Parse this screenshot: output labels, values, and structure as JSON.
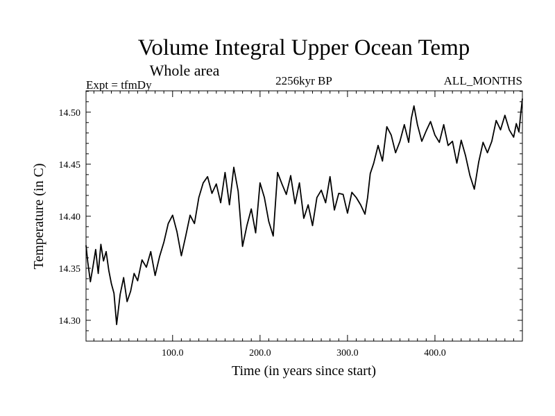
{
  "chart_data": {
    "type": "line",
    "title": "Volume Integral Upper Ocean Temp",
    "subtitle": "Whole area",
    "left_label": "Expt = tfmDy",
    "center_label": "2256kyr BP",
    "right_label": "ALL_MONTHS",
    "xlabel": "Time (in years since start)",
    "ylabel": "Temperature (in C)",
    "xlim": [
      1,
      500
    ],
    "ylim": [
      14.28,
      14.5205
    ],
    "x_ticks": [
      100,
      200,
      300,
      400
    ],
    "x_tick_labels": [
      "100.0",
      "200.0",
      "300.0",
      "400.0"
    ],
    "y_ticks": [
      14.3,
      14.35,
      14.4,
      14.45,
      14.5
    ],
    "y_tick_labels": [
      "14.30",
      "14.35",
      "14.40",
      "14.45",
      "14.50"
    ],
    "series": [
      {
        "name": "Volume integral upper ocean temperature",
        "x": [
          1,
          3,
          6,
          9,
          12,
          15,
          18,
          21,
          24,
          27,
          30,
          33,
          36,
          40,
          44,
          48,
          52,
          56,
          60,
          65,
          70,
          75,
          80,
          85,
          90,
          95,
          100,
          105,
          110,
          115,
          120,
          125,
          130,
          135,
          140,
          145,
          150,
          155,
          160,
          165,
          170,
          175,
          180,
          185,
          190,
          195,
          200,
          205,
          210,
          215,
          220,
          225,
          230,
          235,
          240,
          245,
          250,
          255,
          260,
          265,
          270,
          275,
          280,
          285,
          290,
          295,
          300,
          305,
          310,
          315,
          320,
          323,
          326,
          330,
          335,
          340,
          345,
          350,
          355,
          360,
          365,
          370,
          373,
          376,
          380,
          385,
          390,
          395,
          400,
          405,
          410,
          415,
          420,
          425,
          430,
          435,
          440,
          445,
          450,
          455,
          460,
          465,
          470,
          475,
          480,
          485,
          490,
          493,
          496,
          498,
          500
        ],
        "y": [
          14.372,
          14.356,
          14.337,
          14.352,
          14.368,
          14.345,
          14.373,
          14.357,
          14.366,
          14.348,
          14.335,
          14.326,
          14.296,
          14.325,
          14.341,
          14.318,
          14.328,
          14.345,
          14.338,
          14.358,
          14.351,
          14.366,
          14.343,
          14.361,
          14.375,
          14.393,
          14.401,
          14.385,
          14.362,
          14.381,
          14.401,
          14.393,
          14.418,
          14.432,
          14.438,
          14.422,
          14.431,
          14.413,
          14.442,
          14.411,
          14.447,
          14.424,
          14.371,
          14.391,
          14.407,
          14.384,
          14.432,
          14.418,
          14.395,
          14.381,
          14.442,
          14.431,
          14.421,
          14.439,
          14.412,
          14.432,
          14.398,
          14.411,
          14.391,
          14.418,
          14.425,
          14.413,
          14.438,
          14.406,
          14.422,
          14.421,
          14.403,
          14.423,
          14.418,
          14.411,
          14.402,
          14.418,
          14.441,
          14.451,
          14.468,
          14.453,
          14.486,
          14.478,
          14.461,
          14.472,
          14.488,
          14.471,
          14.494,
          14.506,
          14.488,
          14.472,
          14.482,
          14.491,
          14.478,
          14.471,
          14.488,
          14.468,
          14.472,
          14.451,
          14.473,
          14.458,
          14.439,
          14.426,
          14.452,
          14.471,
          14.461,
          14.472,
          14.492,
          14.483,
          14.497,
          14.483,
          14.476,
          14.489,
          14.481,
          14.498,
          14.513
        ]
      }
    ]
  }
}
